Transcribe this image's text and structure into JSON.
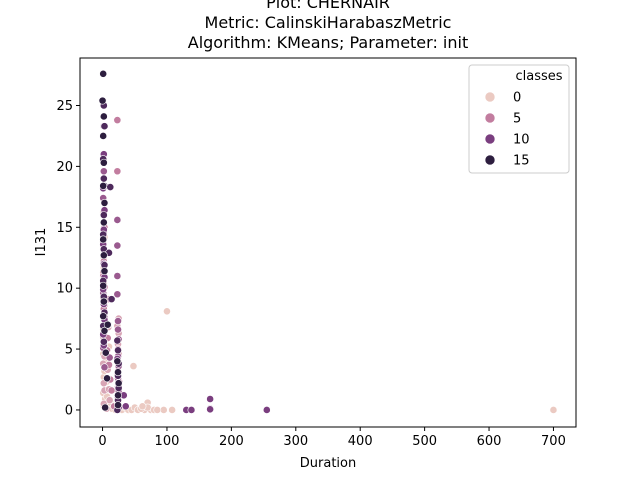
{
  "chart_data": {
    "type": "scatter",
    "title_lines": [
      "Plot: CHERNAIR",
      "Metric: CalinskiHarabaszMetric",
      "Algorithm: KMeans; Parameter: init"
    ],
    "xlabel": "Duration",
    "ylabel": "I131",
    "xlim": [
      -35,
      735
    ],
    "ylim": [
      -1.4,
      28.9
    ],
    "xticks": [
      0,
      100,
      200,
      300,
      400,
      500,
      600,
      700
    ],
    "yticks": [
      0,
      5,
      10,
      15,
      20,
      25
    ],
    "grid": false,
    "legend": {
      "title": "classes",
      "placement": "top-right",
      "entries": [
        {
          "label": "0",
          "color": "#ebcac2"
        },
        {
          "label": "5",
          "color": "#c27d9f"
        },
        {
          "label": "10",
          "color": "#7a3e7f"
        },
        {
          "label": "15",
          "color": "#2d1e3f"
        }
      ]
    },
    "series": [
      {
        "color": "#ebcac2",
        "points": [
          [
            700,
            0
          ],
          [
            100,
            8.1
          ],
          [
            48,
            3.6
          ],
          [
            70,
            0.6
          ],
          [
            65,
            0
          ],
          [
            75,
            0
          ],
          [
            95,
            0
          ],
          [
            108,
            0
          ],
          [
            70,
            0.2
          ],
          [
            2,
            0.3
          ],
          [
            4,
            0.9
          ],
          [
            1,
            1.4
          ],
          [
            2,
            2.7
          ],
          [
            3,
            3.2
          ],
          [
            1,
            4.6
          ],
          [
            2,
            5.7
          ],
          [
            1,
            6.6
          ],
          [
            3,
            7.1
          ],
          [
            2,
            9.6
          ],
          [
            2,
            11.7
          ],
          [
            2,
            12.5
          ],
          [
            1,
            13.2
          ],
          [
            3,
            14.2
          ],
          [
            1,
            16.2
          ],
          [
            2,
            20.9
          ],
          [
            10,
            5.2
          ],
          [
            8,
            4.1
          ],
          [
            6,
            2.3
          ],
          [
            7,
            1.1
          ],
          [
            5,
            0.4
          ],
          [
            12,
            0.6
          ],
          [
            15,
            0.1
          ],
          [
            20,
            0
          ],
          [
            30,
            0
          ],
          [
            35,
            0.2
          ],
          [
            40,
            0
          ],
          [
            45,
            0
          ],
          [
            50,
            0.2
          ],
          [
            55,
            0
          ],
          [
            60,
            0.1
          ],
          [
            80,
            0
          ],
          [
            85,
            0
          ],
          [
            62,
            0.3
          ]
        ]
      },
      {
        "color": "#d8a5b5",
        "points": [
          [
            2,
            0.5
          ],
          [
            3,
            1.6
          ],
          [
            2,
            2.2
          ],
          [
            1,
            3.8
          ],
          [
            3,
            4.4
          ],
          [
            2,
            5.3
          ],
          [
            1,
            6.0
          ],
          [
            2,
            7.8
          ],
          [
            3,
            8.6
          ],
          [
            1,
            9.2
          ],
          [
            2,
            10.4
          ],
          [
            1,
            11.3
          ],
          [
            25,
            0.4
          ],
          [
            25,
            1.3
          ],
          [
            25,
            2.4
          ],
          [
            24,
            3.2
          ],
          [
            25,
            4.6
          ],
          [
            24,
            5.4
          ],
          [
            25,
            6.3
          ],
          [
            23,
            6.9
          ],
          [
            25,
            7.5
          ],
          [
            9,
            6.8
          ],
          [
            8,
            3.3
          ],
          [
            10,
            1.7
          ],
          [
            11,
            0.8
          ],
          [
            6,
            0.1
          ]
        ]
      },
      {
        "color": "#c27d9f",
        "points": [
          [
            23,
            23.8
          ],
          [
            23,
            19.6
          ],
          [
            2,
            16.1
          ],
          [
            3,
            15.0
          ],
          [
            1,
            13.8
          ],
          [
            2,
            12.2
          ],
          [
            1,
            11.0
          ],
          [
            3,
            10.1
          ],
          [
            2,
            8.3
          ],
          [
            24,
            5.0
          ],
          [
            24,
            4.0
          ],
          [
            23,
            2.9
          ],
          [
            24,
            1.9
          ],
          [
            24,
            0.9
          ],
          [
            24,
            0.1
          ],
          [
            26,
            2.3
          ],
          [
            9,
            9.1
          ],
          [
            8,
            5.9
          ],
          [
            7,
            4.9
          ],
          [
            10,
            3.7
          ],
          [
            12,
            2.5
          ],
          [
            14,
            1.6
          ],
          [
            18,
            0.3
          ]
        ]
      },
      {
        "color": "#9a5a8f",
        "points": [
          [
            23,
            15.6
          ],
          [
            23,
            13.5
          ],
          [
            23,
            11.0
          ],
          [
            23,
            9.5
          ],
          [
            24,
            7.3
          ],
          [
            24,
            6.6
          ],
          [
            25,
            5.8
          ],
          [
            24,
            4.4
          ],
          [
            25,
            3.6
          ],
          [
            24,
            2.6
          ],
          [
            25,
            1.6
          ],
          [
            24,
            0.5
          ],
          [
            2,
            19.6
          ],
          [
            1,
            17.4
          ],
          [
            2,
            14.6
          ],
          [
            3,
            13.0
          ],
          [
            2,
            10.8
          ],
          [
            1,
            9.6
          ],
          [
            3,
            7.6
          ],
          [
            2,
            6.4
          ],
          [
            1,
            5.1
          ],
          [
            3,
            3.5
          ],
          [
            9,
            7.0
          ],
          [
            11,
            4.3
          ]
        ]
      },
      {
        "color": "#7a3e7f",
        "points": [
          [
            167,
            0.9
          ],
          [
            167,
            0.1
          ],
          [
            255,
            0
          ],
          [
            130,
            0
          ],
          [
            138,
            0
          ],
          [
            167,
            0.05
          ],
          [
            2,
            23.3
          ],
          [
            2,
            21.0
          ],
          [
            1,
            18.2
          ],
          [
            3,
            16.4
          ],
          [
            2,
            14.8
          ],
          [
            1,
            13.6
          ],
          [
            2,
            12.0
          ],
          [
            3,
            10.9
          ],
          [
            1,
            9.9
          ],
          [
            2,
            8.7
          ],
          [
            3,
            7.4
          ],
          [
            1,
            6.2
          ],
          [
            2,
            5.3
          ],
          [
            23,
            4.2
          ],
          [
            24,
            3.0
          ],
          [
            25,
            2.0
          ],
          [
            24,
            1.0
          ],
          [
            25,
            0.2
          ],
          [
            33,
            1.2
          ],
          [
            36,
            0.3
          ]
        ]
      },
      {
        "color": "#4e2a5c",
        "points": [
          [
            2,
            25.0
          ],
          [
            3,
            23.3
          ],
          [
            1,
            20.6
          ],
          [
            2,
            19.0
          ],
          [
            3,
            18.4
          ],
          [
            2,
            16.0
          ],
          [
            1,
            14.4
          ],
          [
            2,
            13.2
          ],
          [
            3,
            11.9
          ],
          [
            1,
            10.6
          ],
          [
            2,
            9.3
          ],
          [
            3,
            8.0
          ],
          [
            1,
            6.9
          ],
          [
            2,
            5.6
          ],
          [
            12,
            18.3
          ],
          [
            10,
            12.9
          ],
          [
            14,
            9.1
          ],
          [
            23,
            5.7
          ],
          [
            24,
            4.9
          ],
          [
            25,
            3.8
          ],
          [
            24,
            2.8
          ],
          [
            25,
            1.8
          ],
          [
            24,
            0.8
          ],
          [
            23,
            0
          ]
        ]
      },
      {
        "color": "#2d1e3f",
        "points": [
          [
            1,
            27.6
          ],
          [
            0,
            25.4
          ],
          [
            2,
            24.1
          ],
          [
            1,
            22.5
          ],
          [
            2,
            20.3
          ],
          [
            1,
            18.4
          ],
          [
            3,
            17.0
          ],
          [
            2,
            15.4
          ],
          [
            1,
            14.0
          ],
          [
            2,
            12.7
          ],
          [
            3,
            11.4
          ],
          [
            1,
            10.2
          ],
          [
            2,
            8.9
          ],
          [
            1,
            7.7
          ],
          [
            3,
            6.5
          ],
          [
            8,
            7.0
          ],
          [
            23,
            4.0
          ],
          [
            24,
            3.1
          ],
          [
            25,
            2.2
          ],
          [
            24,
            1.2
          ],
          [
            24,
            0.4
          ],
          [
            4,
            0.2
          ],
          [
            7,
            2.6
          ],
          [
            5,
            4.7
          ]
        ]
      }
    ]
  }
}
